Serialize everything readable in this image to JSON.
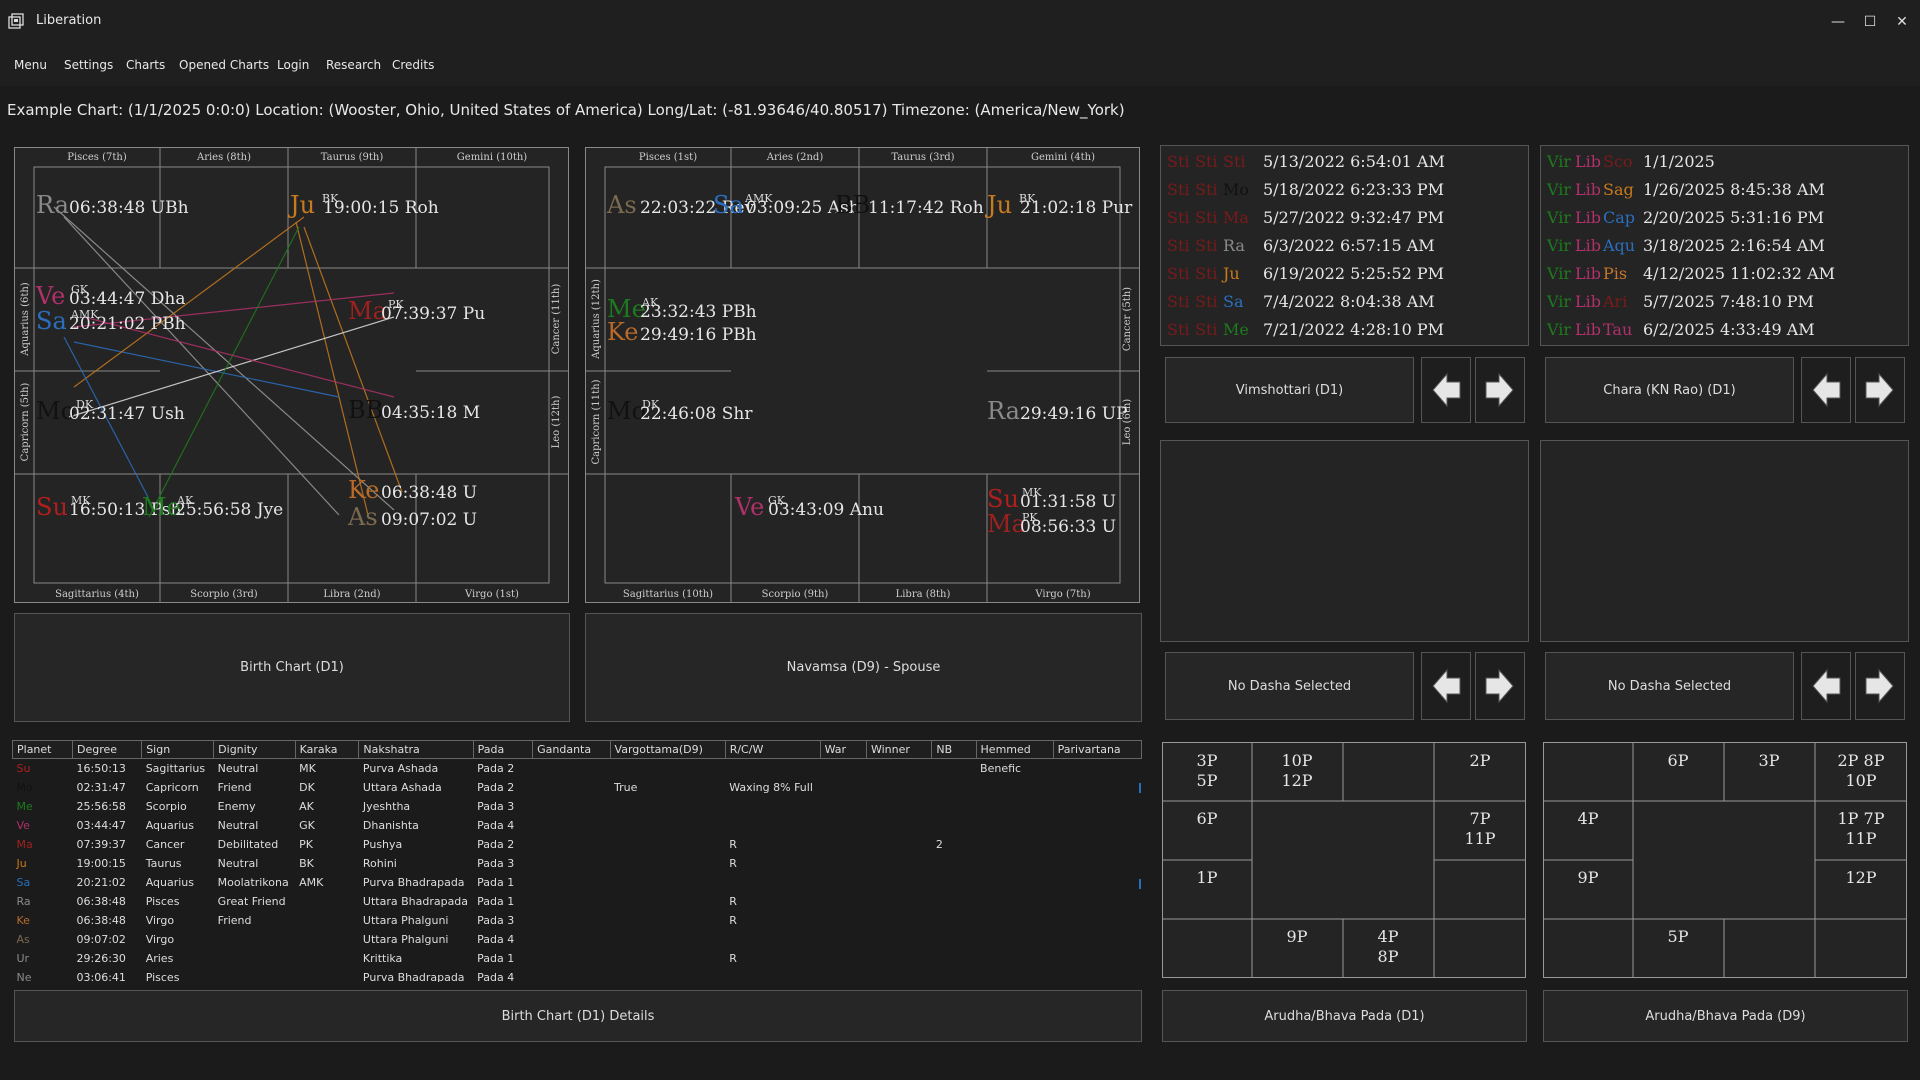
{
  "window": {
    "title": "Liberation",
    "minimize": "—",
    "maximize": "☐",
    "close": "✕"
  },
  "menu": [
    "Menu",
    "Settings",
    "Charts",
    "Opened Charts",
    "Login",
    "Research",
    "Credits"
  ],
  "header": "Example Chart: (1/1/2025 0:0:0) Location: (Wooster, Ohio, United States of America) Long/Lat: (-81.93646/40.80517) Timezone: (America/New_York)",
  "colors": {
    "Su": "#b01e1e",
    "Mo": "#111111",
    "Me": "#1e7a1e",
    "Ve": "#b0306a",
    "Ma": "#a02020",
    "Ju": "#c87a1e",
    "Sa": "#2a6fbf",
    "Ra": "#8a8a8a",
    "Ke": "#b86a2a",
    "As": "#7a6a50",
    "BB": "#111111"
  },
  "chart1": {
    "caption": "Birth Chart (D1)",
    "top_signs": [
      "Pisces (7th)",
      "Aries (8th)",
      "Taurus (9th)",
      "Gemini (10th)"
    ],
    "bottom_signs": [
      "Sagittarius (4th)",
      "Scorpio (3rd)",
      "Libra (2nd)",
      "Virgo (1st)"
    ],
    "left_signs": [
      "Aquarius (6th)",
      "Capricorn (5th)"
    ],
    "right_signs": [
      "Cancer (11th)",
      "Leo (12th)"
    ],
    "planets": [
      {
        "p": "Ra",
        "deg": "06:38:48 UBh",
        "k": ""
      },
      {
        "p": "Ju",
        "deg": "19:00:15 Roh",
        "k": "BK"
      },
      {
        "p": "Ve",
        "deg": "03:44:47 Dha",
        "k": "GK"
      },
      {
        "p": "Sa",
        "deg": "20:21:02 PBh",
        "k": "AMK"
      },
      {
        "p": "Ma",
        "deg": "07:39:37 Pu",
        "k": "PK"
      },
      {
        "p": "Mo",
        "deg": "02:31:47 Ush",
        "k": "DK"
      },
      {
        "p": "BB",
        "deg": "04:35:18 M",
        "k": ""
      },
      {
        "p": "Su",
        "deg": "16:50:13 Psh",
        "k": "MK"
      },
      {
        "p": "Me",
        "deg": "25:56:58 Jye",
        "k": "AK"
      },
      {
        "p": "Ke",
        "deg": "06:38:48 U",
        "k": ""
      },
      {
        "p": "As",
        "deg": "09:07:02 U",
        "k": ""
      }
    ]
  },
  "chart2": {
    "caption": "Navamsa (D9) - Spouse",
    "top_signs": [
      "Pisces (1st)",
      "Aries (2nd)",
      "Taurus (3rd)",
      "Gemini (4th)"
    ],
    "bottom_signs": [
      "Sagittarius (10th)",
      "Scorpio (9th)",
      "Libra (8th)",
      "Virgo (7th)"
    ],
    "left_signs": [
      "Aquarius (12th)",
      "Capricorn (11th)"
    ],
    "right_signs": [
      "Cancer (5th)",
      "Leo (6th)"
    ],
    "planets": [
      {
        "p": "As",
        "deg": "22:03:22 Rev",
        "k": ""
      },
      {
        "p": "Sa",
        "deg": "03:09:25 Asb",
        "k": "AMK"
      },
      {
        "p": "BB",
        "deg": "11:17:42 Roh",
        "k": ""
      },
      {
        "p": "Ju",
        "deg": "21:02:18 Pur",
        "k": "BK"
      },
      {
        "p": "Me",
        "deg": "23:32:43 PBh",
        "k": "AK"
      },
      {
        "p": "Ke",
        "deg": "29:49:16 PBh",
        "k": ""
      },
      {
        "p": "Mo",
        "deg": "22:46:08 Shr",
        "k": "DK"
      },
      {
        "p": "Ra",
        "deg": "29:49:16 UP",
        "k": ""
      },
      {
        "p": "Ve",
        "deg": "03:43:09 Anu",
        "k": "GK"
      },
      {
        "p": "Su",
        "deg": "01:31:58 U",
        "k": "MK"
      },
      {
        "p": "Ma",
        "deg": "08:56:33 U",
        "k": "PK"
      }
    ]
  },
  "dasha1": {
    "rows": [
      {
        "a": "Sti",
        "b": "Sti",
        "c": "Sti",
        "date": "5/13/2022 6:54:01 AM"
      },
      {
        "a": "Sti",
        "b": "Sti",
        "c": "Mo",
        "date": "5/18/2022 6:23:33 PM"
      },
      {
        "a": "Sti",
        "b": "Sti",
        "c": "Ma",
        "date": "5/27/2022 9:32:47 PM"
      },
      {
        "a": "Sti",
        "b": "Sti",
        "c": "Ra",
        "date": "6/3/2022 6:57:15 AM"
      },
      {
        "a": "Sti",
        "b": "Sti",
        "c": "Ju",
        "date": "6/19/2022 5:25:52 PM"
      },
      {
        "a": "Sti",
        "b": "Sti",
        "c": "Sa",
        "date": "7/4/2022 8:04:38 AM"
      },
      {
        "a": "Sti",
        "b": "Sti",
        "c": "Me",
        "date": "7/21/2022 4:28:10 PM"
      }
    ],
    "row_colors": [
      "#7a1a1a",
      "#111111",
      "#7a1a1a",
      "#8a8a8a",
      "#c87a1e",
      "#2a6fbf",
      "#1e7a1e"
    ],
    "select_label": "Vimshottari (D1)",
    "empty_label": "No Dasha Selected"
  },
  "dasha2": {
    "rows": [
      {
        "a": "Vir",
        "b": "Lib",
        "c": "Sco",
        "date": "1/1/2025"
      },
      {
        "a": "Vir",
        "b": "Lib",
        "c": "Sag",
        "date": "1/26/2025 8:45:38 AM"
      },
      {
        "a": "Vir",
        "b": "Lib",
        "c": "Cap",
        "date": "2/20/2025 5:31:16 PM"
      },
      {
        "a": "Vir",
        "b": "Lib",
        "c": "Aqu",
        "date": "3/18/2025 2:16:54 AM"
      },
      {
        "a": "Vir",
        "b": "Lib",
        "c": "Pis",
        "date": "4/12/2025 11:02:32 AM"
      },
      {
        "a": "Vir",
        "b": "Lib",
        "c": "Ari",
        "date": "5/7/2025 7:48:10 PM"
      },
      {
        "a": "Vir",
        "b": "Lib",
        "c": "Tau",
        "date": "6/2/2025 4:33:49 AM"
      }
    ],
    "row_colors": [
      "#7a1a1a",
      "#c87a1e",
      "#2a6fbf",
      "#2a6fbf",
      "#c8762a",
      "#7a1a1a",
      "#b0306a"
    ],
    "select_label": "Chara (KN Rao) (D1)",
    "empty_label": "No Dasha Selected"
  },
  "table": {
    "headers": [
      "Planet",
      "Degree",
      "Sign",
      "Dignity",
      "Karaka",
      "Nakshatra",
      "Pada",
      "Gandanta",
      "Vargottama(D9)",
      "R/C/W",
      "War",
      "Winner",
      "NB",
      "Hemmed",
      "Parivartana"
    ],
    "rows": [
      [
        "Su",
        "16:50:13",
        "Sagittarius",
        "Neutral",
        "MK",
        "Purva Ashada",
        "Pada 2",
        "",
        "",
        "",
        "",
        "",
        "",
        "Benefic",
        ""
      ],
      [
        "Mo",
        "02:31:47",
        "Capricorn",
        "Friend",
        "DK",
        "Uttara Ashada",
        "Pada 2",
        "",
        "True",
        "Waxing 8% Full",
        "",
        "",
        "",
        "",
        ""
      ],
      [
        "Me",
        "25:56:58",
        "Scorpio",
        "Enemy",
        "AK",
        "Jyeshtha",
        "Pada 3",
        "",
        "",
        "",
        "",
        "",
        "",
        "",
        ""
      ],
      [
        "Ve",
        "03:44:47",
        "Aquarius",
        "Neutral",
        "GK",
        "Dhanishta",
        "Pada 4",
        "",
        "",
        "",
        "",
        "",
        "",
        "",
        ""
      ],
      [
        "Ma",
        "07:39:37",
        "Cancer",
        "Debilitated",
        "PK",
        "Pushya",
        "Pada 2",
        "",
        "",
        "R",
        "",
        "",
        "2",
        "",
        ""
      ],
      [
        "Ju",
        "19:00:15",
        "Taurus",
        "Neutral",
        "BK",
        "Rohini",
        "Pada 3",
        "",
        "",
        "R",
        "",
        "",
        "",
        "",
        ""
      ],
      [
        "Sa",
        "20:21:02",
        "Aquarius",
        "Moolatrikona",
        "AMK",
        "Purva Bhadrapada",
        "Pada 1",
        "",
        "",
        "",
        "",
        "",
        "",
        "",
        ""
      ],
      [
        "Ra",
        "06:38:48",
        "Pisces",
        "Great Friend",
        "",
        "Uttara Bhadrapada",
        "Pada 1",
        "",
        "",
        "R",
        "",
        "",
        "",
        "",
        ""
      ],
      [
        "Ke",
        "06:38:48",
        "Virgo",
        "Friend",
        "",
        "Uttara Phalguni",
        "Pada 3",
        "",
        "",
        "R",
        "",
        "",
        "",
        "",
        ""
      ],
      [
        "As",
        "09:07:02",
        "Virgo",
        "",
        "",
        "Uttara Phalguni",
        "Pada 4",
        "",
        "",
        "",
        "",
        "",
        "",
        "",
        ""
      ],
      [
        "Ur",
        "29:26:30",
        "Aries",
        "",
        "",
        "Krittika",
        "Pada 1",
        "",
        "",
        "R",
        "",
        "",
        "",
        "",
        ""
      ],
      [
        "Ne",
        "03:06:41",
        "Pisces",
        "",
        "",
        "Purva Bhadrapada",
        "Pada 4",
        "",
        "",
        "",
        "",
        "",
        "",
        "",
        ""
      ]
    ],
    "caption": "Birth Chart (D1) Details"
  },
  "pada1": {
    "caption": "Arudha/Bhava Pada (D1)",
    "top": [
      "3P\n5P",
      "10P\n12P",
      "",
      "2P"
    ],
    "left": [
      "6P",
      "1P"
    ],
    "right": [
      "7P\n11P",
      ""
    ],
    "bottom": [
      "",
      "9P",
      "4P\n8P",
      ""
    ]
  },
  "pada2": {
    "caption": "Arudha/Bhava Pada (D9)",
    "top": [
      "",
      "6P",
      "3P",
      "2P 8P\n10P"
    ],
    "left": [
      "4P",
      "9P"
    ],
    "right": [
      "1P 7P\n11P",
      "12P"
    ],
    "bottom": [
      "",
      "5P",
      "",
      ""
    ]
  }
}
